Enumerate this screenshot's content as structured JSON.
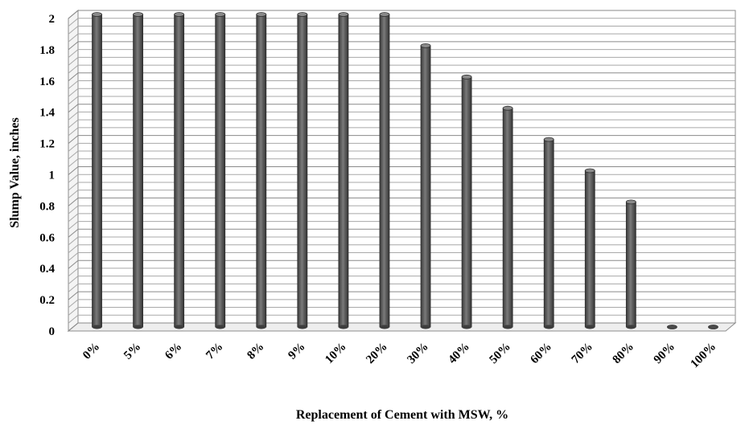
{
  "chart_data": {
    "type": "bar",
    "title": "",
    "xlabel": "Replacement of Cement with MSW, %",
    "ylabel": "Slump Value, inches",
    "categories": [
      "0%",
      "5%",
      "6%",
      "7%",
      "8%",
      "9%",
      "10%",
      "20%",
      "30%",
      "40%",
      "50%",
      "60%",
      "70%",
      "80%",
      "90%",
      "100%"
    ],
    "values": [
      2,
      2,
      2,
      2,
      2,
      2,
      2,
      2,
      1.8,
      1.6,
      1.4,
      1.2,
      1.0,
      0.8,
      0,
      0
    ],
    "ylim": [
      0,
      2
    ],
    "yticks": [
      "0",
      "0.2",
      "0.4",
      "0.6",
      "0.8",
      "1",
      "1.2",
      "1.4",
      "1.6",
      "1.8",
      "2"
    ],
    "grid": true,
    "legend": "none",
    "bar_color": "#555555"
  }
}
